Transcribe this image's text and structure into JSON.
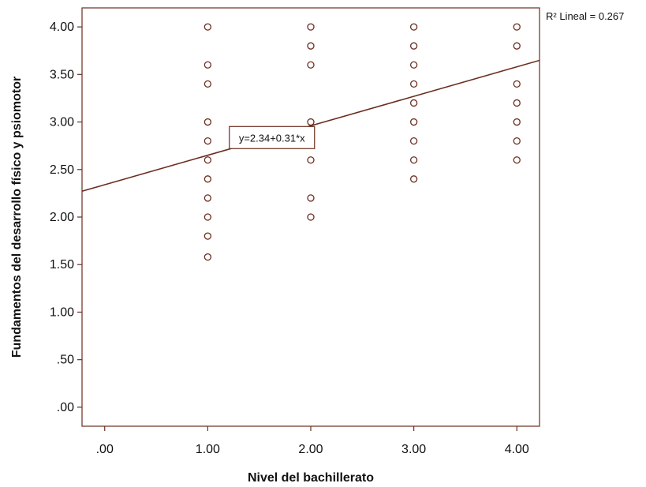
{
  "chart_data": {
    "type": "scatter",
    "xlabel": "Nivel del bachillerato",
    "ylabel": "Fundamentos del desarrollo físico y psiomotor",
    "xlim": [
      -0.22,
      4.22
    ],
    "ylim": [
      -0.2,
      4.2
    ],
    "x_ticks": [
      0,
      1,
      2,
      3,
      4
    ],
    "x_tick_labels": [
      ".00",
      "1.00",
      "2.00",
      "3.00",
      "4.00"
    ],
    "y_ticks": [
      0,
      0.5,
      1,
      1.5,
      2,
      2.5,
      3,
      3.5,
      4
    ],
    "y_tick_labels": [
      ".00",
      ".50",
      "1.00",
      "1.50",
      "2.00",
      "2.50",
      "3.00",
      "3.50",
      "4.00"
    ],
    "grid": false,
    "colors": {
      "marker": "#6b2d1f",
      "line": "#6b2d1f",
      "frame": "#6b2d1f"
    },
    "points": [
      {
        "x": 1,
        "y": 4.0
      },
      {
        "x": 1,
        "y": 3.6
      },
      {
        "x": 1,
        "y": 3.4
      },
      {
        "x": 1,
        "y": 3.0
      },
      {
        "x": 1,
        "y": 2.8
      },
      {
        "x": 1,
        "y": 2.6
      },
      {
        "x": 1,
        "y": 2.4
      },
      {
        "x": 1,
        "y": 2.2
      },
      {
        "x": 1,
        "y": 2.0
      },
      {
        "x": 1,
        "y": 1.8
      },
      {
        "x": 1,
        "y": 1.58
      },
      {
        "x": 2,
        "y": 4.0
      },
      {
        "x": 2,
        "y": 3.8
      },
      {
        "x": 2,
        "y": 3.6
      },
      {
        "x": 2,
        "y": 3.0
      },
      {
        "x": 2,
        "y": 2.8
      },
      {
        "x": 2,
        "y": 2.6
      },
      {
        "x": 2,
        "y": 2.2
      },
      {
        "x": 2,
        "y": 2.0
      },
      {
        "x": 3,
        "y": 4.0
      },
      {
        "x": 3,
        "y": 3.8
      },
      {
        "x": 3,
        "y": 3.6
      },
      {
        "x": 3,
        "y": 3.4
      },
      {
        "x": 3,
        "y": 3.2
      },
      {
        "x": 3,
        "y": 3.0
      },
      {
        "x": 3,
        "y": 2.8
      },
      {
        "x": 3,
        "y": 2.6
      },
      {
        "x": 3,
        "y": 2.4
      },
      {
        "x": 4,
        "y": 4.0
      },
      {
        "x": 4,
        "y": 3.8
      },
      {
        "x": 4,
        "y": 3.4
      },
      {
        "x": 4,
        "y": 3.2
      },
      {
        "x": 4,
        "y": 3.0
      },
      {
        "x": 4,
        "y": 2.8
      },
      {
        "x": 4,
        "y": 2.6
      }
    ],
    "fit_line": {
      "intercept": 2.34,
      "slope": 0.31,
      "equation_label": "y=2.34+0.31*x",
      "label_at_x": 1.6,
      "r2_label": "R² Lineal = 0.267"
    }
  }
}
